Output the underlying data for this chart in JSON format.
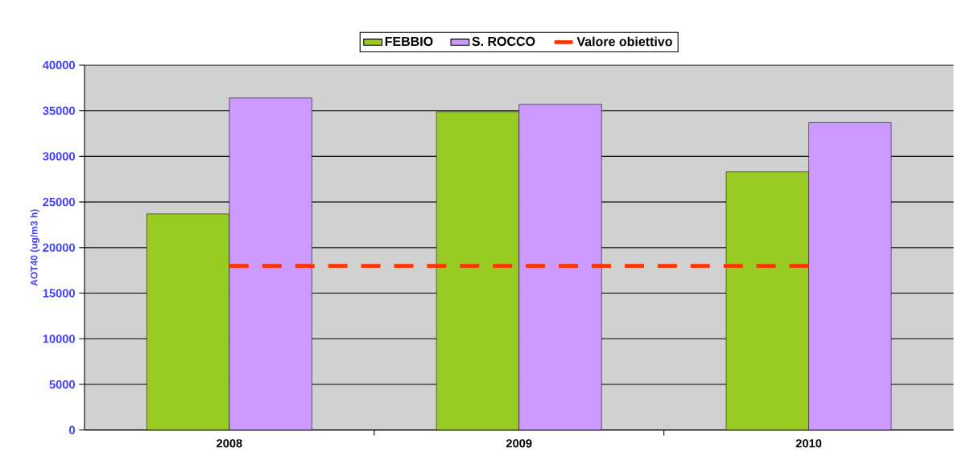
{
  "chart_data": {
    "type": "bar",
    "ylabel": "AOT40 (ug/m3 h)",
    "categories": [
      "2008",
      "2009",
      "2010"
    ],
    "series": [
      {
        "name": "FEBBIO",
        "color": "#99cc22",
        "values": [
          23700,
          34900,
          28300
        ]
      },
      {
        "name": "S. ROCCO",
        "color": "#cc99ff",
        "values": [
          36400,
          35700,
          33700
        ]
      },
      {
        "name": "Valore obiettivo",
        "type": "line",
        "color": "#ff3300",
        "line_style": "dashed",
        "values": [
          18000,
          18000,
          18000
        ]
      }
    ],
    "ylim": [
      0,
      40000
    ],
    "yticks": [
      0,
      5000,
      10000,
      15000,
      20000,
      25000,
      30000,
      35000,
      40000
    ],
    "grid": "y",
    "legend": "top"
  }
}
